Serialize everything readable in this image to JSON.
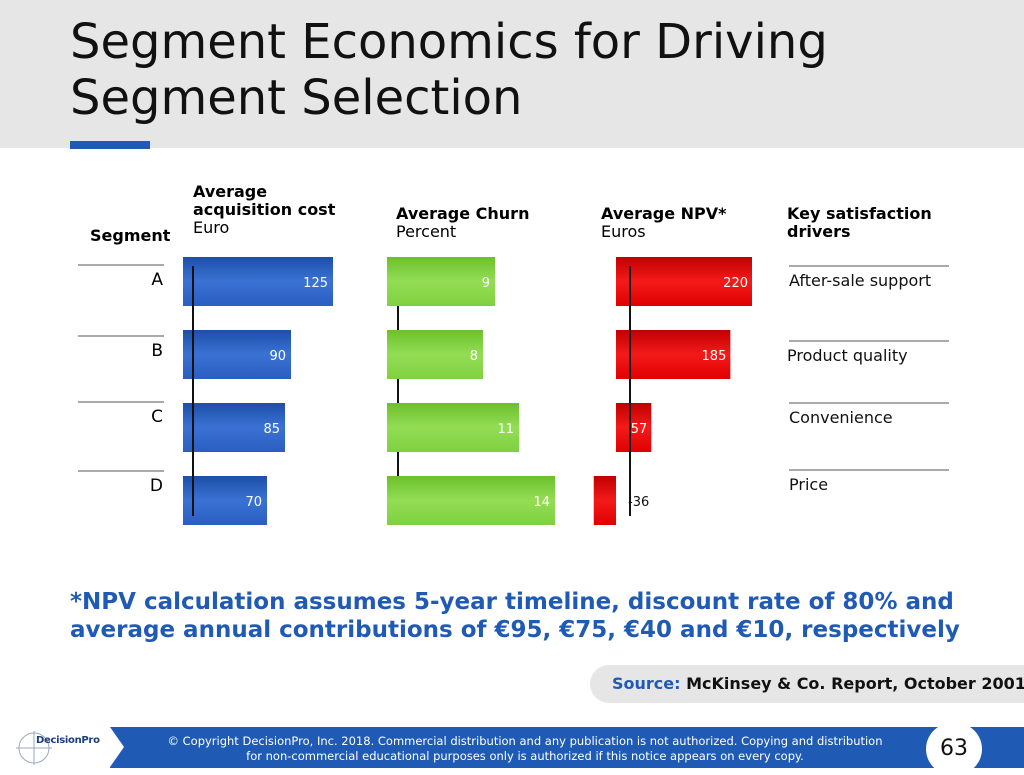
{
  "slide": {
    "title": "Segment Economics for Driving Segment Selection",
    "footnote": "*NPV calculation assumes 5-year timeline, discount rate of 80% and average annual contributions of €95, €75, €40 and €10, respectively",
    "source_label": "Source:",
    "source_value": "McKinsey & Co. Report, October 2001"
  },
  "columns": {
    "segment": "Segment",
    "acq_title": "Average acquisition cost",
    "acq_unit": "Euro",
    "churn_title": "Average Churn",
    "churn_unit": "Percent",
    "npv_title": "Average NPV*",
    "npv_unit": "Euros",
    "drivers_title": "Key satisfaction drivers"
  },
  "chart_data": {
    "type": "bar",
    "categories": [
      "A",
      "B",
      "C",
      "D"
    ],
    "series": [
      {
        "name": "Average acquisition cost",
        "unit": "Euro",
        "values": [
          125,
          90,
          85,
          70
        ],
        "color": "#2b5fbd"
      },
      {
        "name": "Average Churn",
        "unit": "Percent",
        "values": [
          9,
          8,
          11,
          14
        ],
        "color": "#7ccf3a"
      },
      {
        "name": "Average NPV*",
        "unit": "Euros",
        "values": [
          220,
          185,
          57,
          -36
        ],
        "color": "#e60000"
      }
    ],
    "value_labels": {
      "acq": [
        "125",
        "90",
        "85",
        "70"
      ],
      "churn": [
        "9",
        "8",
        "11",
        "14"
      ],
      "npv": [
        "220",
        "185",
        "57",
        "-36"
      ]
    },
    "drivers": [
      "After-sale support",
      "Product quality",
      "Convenience",
      "Price"
    ]
  },
  "footer": {
    "logo": "DecisionPro",
    "copyright_1": "© Copyright DecisionPro, Inc.  2018. Commercial distribution and any publication is not authorized. Copying and distribution",
    "copyright_2": "for non-commercial educational purposes only is authorized if this notice appears on every copy.",
    "page_number": "63"
  }
}
